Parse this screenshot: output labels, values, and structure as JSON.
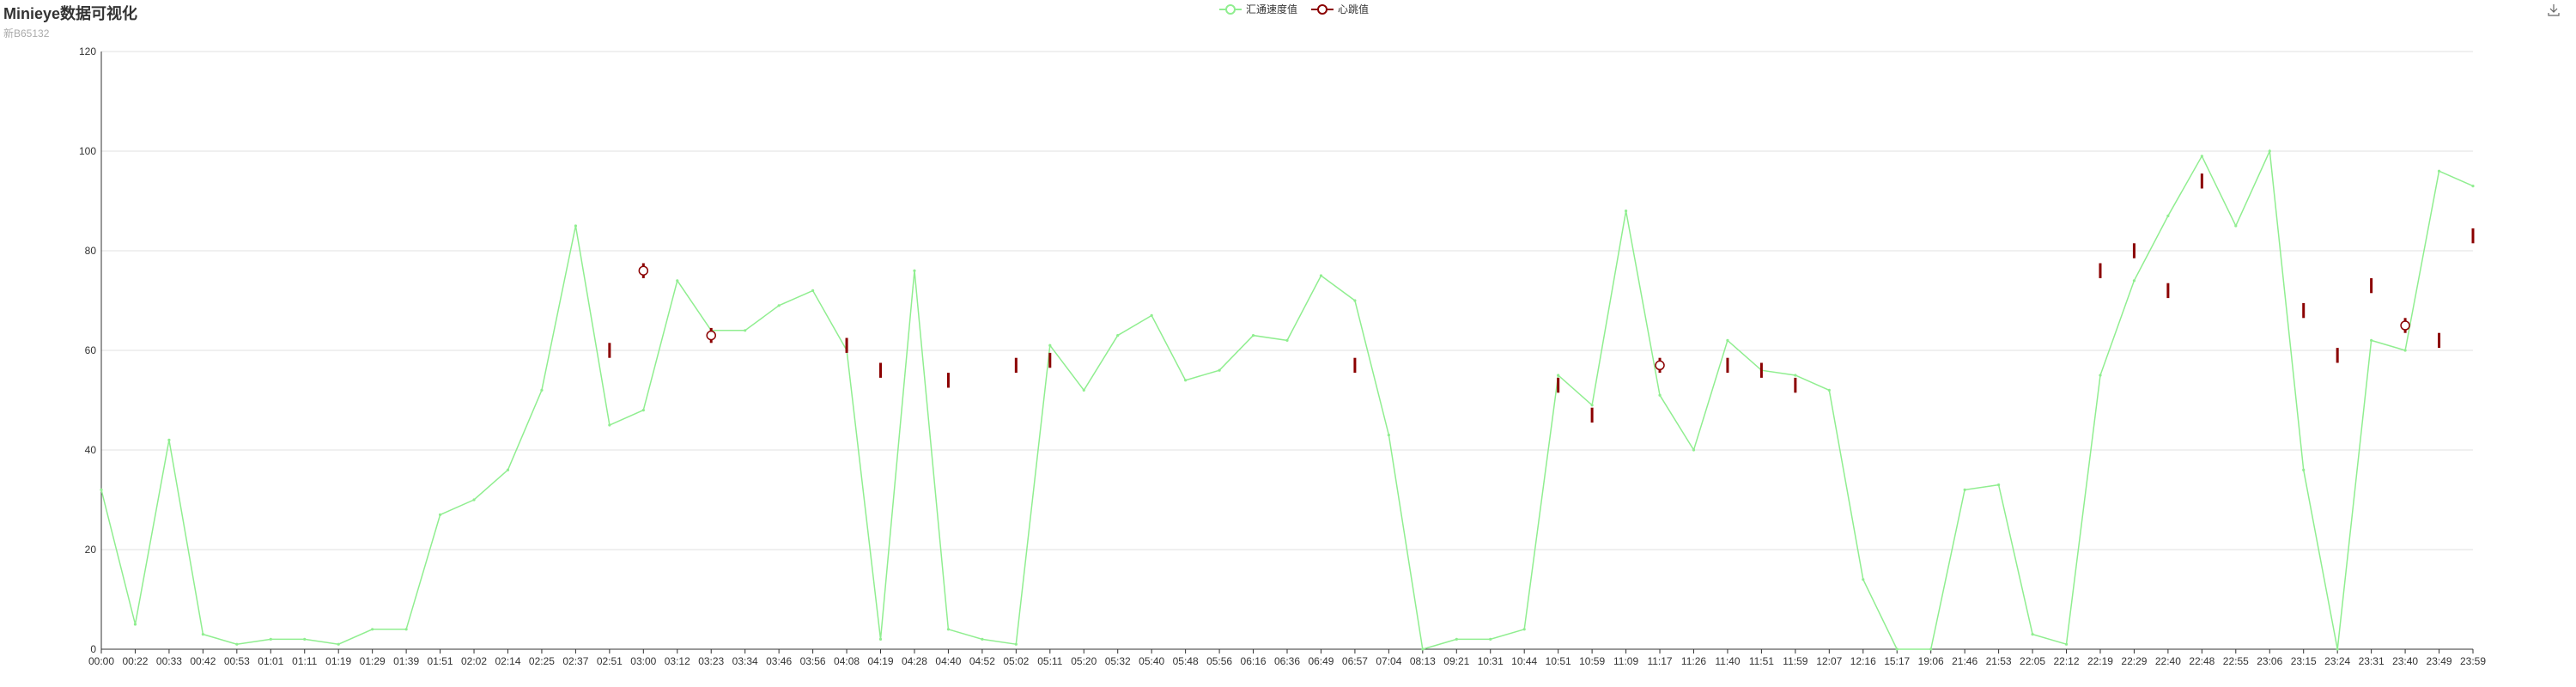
{
  "title": "Minieye数据可视化",
  "subtitle": "新B65132",
  "colors": {
    "speed": "#90ee90",
    "heart_line": "#8b0000",
    "heart_marker_fill": "#ffffff",
    "grid": "#e0e0e0",
    "axis": "#333333"
  },
  "legend": [
    {
      "name": "汇通速度值",
      "color": "#90ee90",
      "icon": "circle-line-icon"
    },
    {
      "name": "心跳值",
      "color": "#8b0000",
      "icon": "circle-line-icon"
    }
  ],
  "toolbar": {
    "download_icon": "download-icon"
  },
  "chart_data": {
    "type": "line",
    "title": "Minieye数据可视化",
    "subtitle": "新B65132",
    "xlabel": "",
    "ylabel": "",
    "ylim": [
      0,
      120
    ],
    "yticks": [
      0,
      20,
      40,
      60,
      80,
      100,
      120
    ],
    "grid": true,
    "legend_position": "top-center",
    "categories": [
      "00:00",
      "00:22",
      "00:33",
      "00:42",
      "00:53",
      "01:01",
      "01:11",
      "01:19",
      "01:29",
      "01:39",
      "01:51",
      "02:02",
      "02:14",
      "02:25",
      "02:37",
      "02:51",
      "03:00",
      "03:12",
      "03:23",
      "03:34",
      "03:46",
      "03:56",
      "04:08",
      "04:19",
      "04:28",
      "04:40",
      "04:52",
      "05:02",
      "05:11",
      "05:20",
      "05:32",
      "05:40",
      "05:48",
      "05:56",
      "06:16",
      "06:36",
      "06:49",
      "06:57",
      "07:04",
      "08:13",
      "09:21",
      "10:31",
      "10:44",
      "10:51",
      "10:59",
      "11:09",
      "11:17",
      "11:26",
      "11:40",
      "11:51",
      "11:59",
      "12:07",
      "12:16",
      "15:17",
      "19:06",
      "21:46",
      "21:53",
      "22:05",
      "22:12",
      "22:19",
      "22:29",
      "22:40",
      "22:48",
      "22:55",
      "23:06",
      "23:15",
      "23:24",
      "23:31",
      "23:40",
      "23:49",
      "23:59"
    ],
    "series": [
      {
        "name": "汇通速度值",
        "values": [
          32,
          5,
          42,
          3,
          1,
          2,
          2,
          1,
          4,
          4,
          27,
          30,
          36,
          52,
          85,
          45,
          48,
          74,
          64,
          64,
          69,
          72,
          60,
          2,
          76,
          4,
          2,
          1,
          61,
          52,
          63,
          67,
          54,
          56,
          63,
          62,
          75,
          70,
          43,
          0,
          2,
          2,
          4,
          55,
          49,
          88,
          51,
          40,
          62,
          56,
          55,
          52,
          14,
          0,
          0,
          32,
          33,
          3,
          1,
          55,
          74,
          87,
          99,
          85,
          100,
          36,
          0,
          62,
          60,
          96,
          93
        ]
      },
      {
        "name": "心跳值",
        "values": [
          null,
          null,
          null,
          null,
          null,
          null,
          null,
          null,
          null,
          null,
          null,
          null,
          null,
          null,
          null,
          60,
          76,
          null,
          63,
          null,
          null,
          null,
          61,
          56,
          null,
          54,
          null,
          57,
          58,
          null,
          null,
          null,
          null,
          null,
          null,
          null,
          null,
          57,
          null,
          null,
          null,
          null,
          null,
          53,
          47,
          null,
          57,
          null,
          57,
          56,
          53,
          null,
          null,
          null,
          null,
          null,
          null,
          null,
          null,
          76,
          80,
          72,
          94,
          null,
          null,
          68,
          59,
          73,
          65,
          62,
          83
        ],
        "markers": [
          {
            "x": "03:00",
            "y": 76
          },
          {
            "x": "03:23",
            "y": 63
          },
          {
            "x": "11:17",
            "y": 57
          },
          {
            "x": "23:40",
            "y": 65
          }
        ]
      }
    ]
  }
}
